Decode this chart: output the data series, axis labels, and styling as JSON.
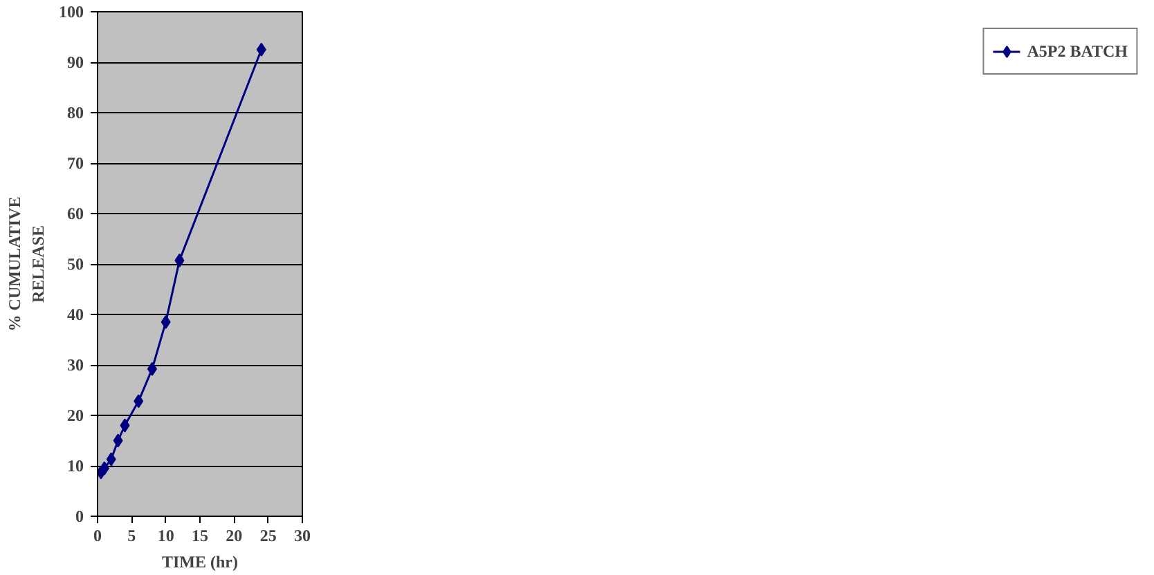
{
  "chart_data": {
    "type": "line",
    "xlabel": "TIME (hr)",
    "ylabel": "% CUMULATIVE RELEASE",
    "x": [
      0.5,
      1,
      2,
      3,
      4,
      6,
      8,
      10,
      12,
      24
    ],
    "series": [
      {
        "name": "A5P2 BATCH",
        "color": "#000080",
        "values": [
          8.7,
          9.5,
          11.3,
          15,
          18,
          22.8,
          29.2,
          38.5,
          50.7,
          92.5
        ]
      }
    ],
    "xlim": [
      0,
      30
    ],
    "xticks": [
      0,
      5,
      10,
      15,
      20,
      25,
      30
    ],
    "ylim": [
      0,
      100
    ],
    "yticks": [
      0,
      10,
      20,
      30,
      40,
      50,
      60,
      70,
      80,
      90,
      100
    ],
    "grid": "y",
    "legend": "right",
    "marker": "diamond",
    "line_style": "solid"
  }
}
